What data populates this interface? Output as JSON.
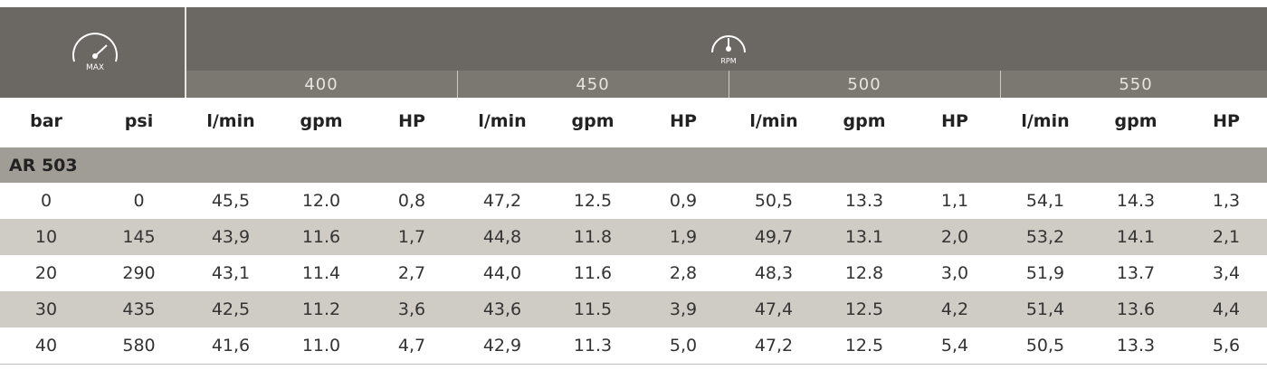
{
  "header": {
    "max_label": "MAX",
    "rpm_label": "RPM",
    "rpm_values": [
      "400",
      "450",
      "500",
      "550"
    ]
  },
  "table": {
    "columns": [
      "bar",
      "psi",
      "l/min",
      "gpm",
      "HP",
      "l/min",
      "gpm",
      "HP",
      "l/min",
      "gpm",
      "HP",
      "l/min",
      "gpm",
      "HP"
    ],
    "section": "AR 503",
    "rows": [
      [
        "0",
        "0",
        "45,5",
        "12.0",
        "0,8",
        "47,2",
        "12.5",
        "0,9",
        "50,5",
        "13.3",
        "1,1",
        "54,1",
        "14.3",
        "1,3"
      ],
      [
        "10",
        "145",
        "43,9",
        "11.6",
        "1,7",
        "44,8",
        "11.8",
        "1,9",
        "49,7",
        "13.1",
        "2,0",
        "53,2",
        "14.1",
        "2,1"
      ],
      [
        "20",
        "290",
        "43,1",
        "11.4",
        "2,7",
        "44,0",
        "11.6",
        "2,8",
        "48,3",
        "12.8",
        "3,0",
        "51,9",
        "13.7",
        "3,4"
      ],
      [
        "30",
        "435",
        "42,5",
        "11.2",
        "3,6",
        "43,6",
        "11.5",
        "3,9",
        "47,4",
        "12.5",
        "4,2",
        "51,4",
        "13.6",
        "4,4"
      ],
      [
        "40",
        "580",
        "41,6",
        "11.0",
        "4,7",
        "42,9",
        "11.3",
        "5,0",
        "47,2",
        "12.5",
        "5,4",
        "50,5",
        "13.3",
        "5,6"
      ]
    ]
  }
}
